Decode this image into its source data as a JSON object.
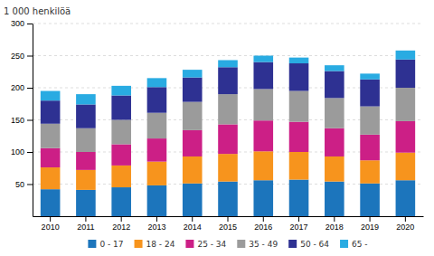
{
  "chart_data": {
    "type": "bar",
    "stacked": true,
    "grid": true,
    "legend": "bottom",
    "ylabel": "1 000 henkilöä",
    "categories": [
      "2010",
      "2011",
      "2012",
      "2013",
      "2014",
      "2015",
      "2016",
      "2017",
      "2018",
      "2019",
      "2020"
    ],
    "series": [
      {
        "name": "0 - 17",
        "color": "#1c75bc",
        "values": [
          42,
          41,
          45,
          48,
          51,
          54,
          56,
          57,
          54,
          51,
          56
        ]
      },
      {
        "name": "18 - 24",
        "color": "#f7941d",
        "values": [
          34,
          31,
          34,
          37,
          42,
          43,
          45,
          43,
          39,
          36,
          43
        ]
      },
      {
        "name": "25 - 34",
        "color": "#cc1f86",
        "values": [
          30,
          28,
          33,
          36,
          41,
          46,
          48,
          47,
          44,
          40,
          49
        ]
      },
      {
        "name": "35 - 49",
        "color": "#9b9b9b",
        "values": [
          38,
          37,
          38,
          40,
          44,
          47,
          49,
          48,
          47,
          44,
          52
        ]
      },
      {
        "name": "50 - 64",
        "color": "#2e3192",
        "values": [
          36,
          37,
          38,
          40,
          38,
          42,
          42,
          43,
          42,
          42,
          44
        ]
      },
      {
        "name": "65 -",
        "color": "#29abe2",
        "values": [
          15,
          16,
          15,
          14,
          12,
          11,
          10,
          9,
          9,
          9,
          14
        ]
      }
    ],
    "ylim": [
      0,
      300
    ],
    "yticks": [
      50,
      100,
      150,
      200,
      250,
      300
    ]
  }
}
